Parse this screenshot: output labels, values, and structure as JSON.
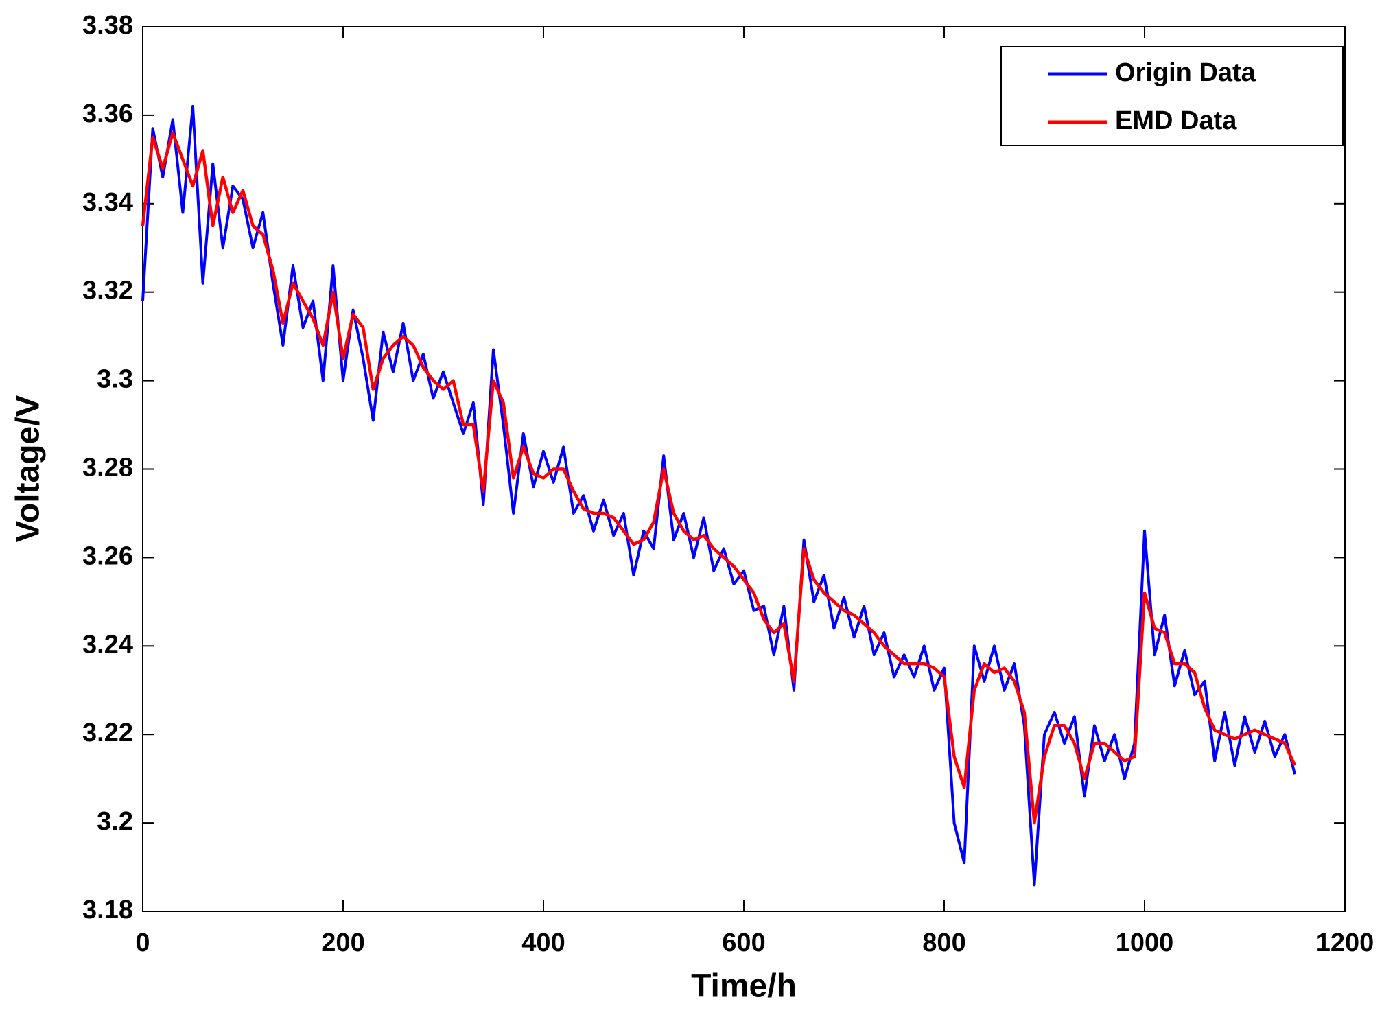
{
  "chart_data": {
    "type": "line",
    "x_label": "Time/h",
    "y_label": "Voltage/V",
    "x": [
      0,
      10,
      20,
      30,
      40,
      50,
      60,
      70,
      80,
      90,
      100,
      110,
      120,
      130,
      140,
      150,
      160,
      170,
      180,
      190,
      200,
      210,
      220,
      230,
      240,
      250,
      260,
      270,
      280,
      290,
      300,
      310,
      320,
      330,
      340,
      350,
      360,
      370,
      380,
      390,
      400,
      410,
      420,
      430,
      440,
      450,
      460,
      470,
      480,
      490,
      500,
      510,
      520,
      530,
      540,
      550,
      560,
      570,
      580,
      590,
      600,
      610,
      620,
      630,
      640,
      650,
      660,
      670,
      680,
      690,
      700,
      710,
      720,
      730,
      740,
      750,
      760,
      770,
      780,
      790,
      800,
      810,
      820,
      830,
      840,
      850,
      860,
      870,
      880,
      890,
      900,
      910,
      920,
      930,
      940,
      950,
      960,
      970,
      980,
      990,
      1000,
      1010,
      1020,
      1030,
      1040,
      1050,
      1060,
      1070,
      1080,
      1090,
      1100,
      1110,
      1120,
      1130,
      1140,
      1150
    ],
    "series": [
      {
        "name": "Origin Data",
        "color": "#0000ff",
        "values": [
          3.318,
          3.357,
          3.346,
          3.359,
          3.338,
          3.362,
          3.322,
          3.349,
          3.33,
          3.344,
          3.341,
          3.33,
          3.338,
          3.322,
          3.308,
          3.326,
          3.312,
          3.318,
          3.3,
          3.326,
          3.3,
          3.316,
          3.305,
          3.291,
          3.311,
          3.302,
          3.313,
          3.3,
          3.306,
          3.296,
          3.302,
          3.295,
          3.288,
          3.295,
          3.272,
          3.307,
          3.29,
          3.27,
          3.288,
          3.276,
          3.284,
          3.277,
          3.285,
          3.27,
          3.274,
          3.266,
          3.273,
          3.265,
          3.27,
          3.256,
          3.266,
          3.262,
          3.283,
          3.264,
          3.27,
          3.26,
          3.269,
          3.257,
          3.262,
          3.254,
          3.257,
          3.248,
          3.249,
          3.238,
          3.249,
          3.23,
          3.264,
          3.25,
          3.256,
          3.244,
          3.251,
          3.242,
          3.249,
          3.238,
          3.243,
          3.233,
          3.238,
          3.233,
          3.24,
          3.23,
          3.235,
          3.2,
          3.191,
          3.24,
          3.232,
          3.24,
          3.23,
          3.236,
          3.222,
          3.186,
          3.22,
          3.225,
          3.218,
          3.224,
          3.206,
          3.222,
          3.214,
          3.22,
          3.21,
          3.218,
          3.266,
          3.238,
          3.247,
          3.231,
          3.239,
          3.229,
          3.232,
          3.214,
          3.225,
          3.213,
          3.224,
          3.216,
          3.223,
          3.215,
          3.22,
          3.211
        ]
      },
      {
        "name": "EMD Data",
        "color": "#ff0000",
        "values": [
          3.335,
          3.355,
          3.348,
          3.356,
          3.35,
          3.344,
          3.352,
          3.335,
          3.346,
          3.338,
          3.343,
          3.335,
          3.333,
          3.325,
          3.313,
          3.322,
          3.318,
          3.314,
          3.308,
          3.32,
          3.305,
          3.315,
          3.312,
          3.298,
          3.305,
          3.308,
          3.31,
          3.308,
          3.303,
          3.3,
          3.298,
          3.3,
          3.29,
          3.29,
          3.275,
          3.3,
          3.295,
          3.278,
          3.285,
          3.279,
          3.278,
          3.28,
          3.28,
          3.275,
          3.271,
          3.27,
          3.27,
          3.269,
          3.266,
          3.263,
          3.264,
          3.268,
          3.28,
          3.27,
          3.266,
          3.264,
          3.265,
          3.262,
          3.26,
          3.258,
          3.255,
          3.252,
          3.246,
          3.243,
          3.245,
          3.232,
          3.262,
          3.255,
          3.252,
          3.25,
          3.248,
          3.247,
          3.245,
          3.243,
          3.24,
          3.238,
          3.236,
          3.236,
          3.236,
          3.235,
          3.233,
          3.215,
          3.208,
          3.23,
          3.236,
          3.234,
          3.235,
          3.232,
          3.225,
          3.2,
          3.215,
          3.222,
          3.222,
          3.218,
          3.21,
          3.218,
          3.218,
          3.216,
          3.214,
          3.215,
          3.252,
          3.244,
          3.243,
          3.236,
          3.236,
          3.234,
          3.226,
          3.221,
          3.22,
          3.219,
          3.22,
          3.221,
          3.22,
          3.219,
          3.218,
          3.213
        ]
      }
    ],
    "xlim": [
      0,
      1200
    ],
    "xticks": [
      0,
      200,
      400,
      600,
      800,
      1000,
      1200
    ],
    "ylim": [
      3.18,
      3.38
    ],
    "yticks": [
      3.18,
      3.2,
      3.22,
      3.24,
      3.26,
      3.28,
      3.3,
      3.32,
      3.34,
      3.36,
      3.38
    ],
    "legend": "upper right",
    "grid": false
  }
}
